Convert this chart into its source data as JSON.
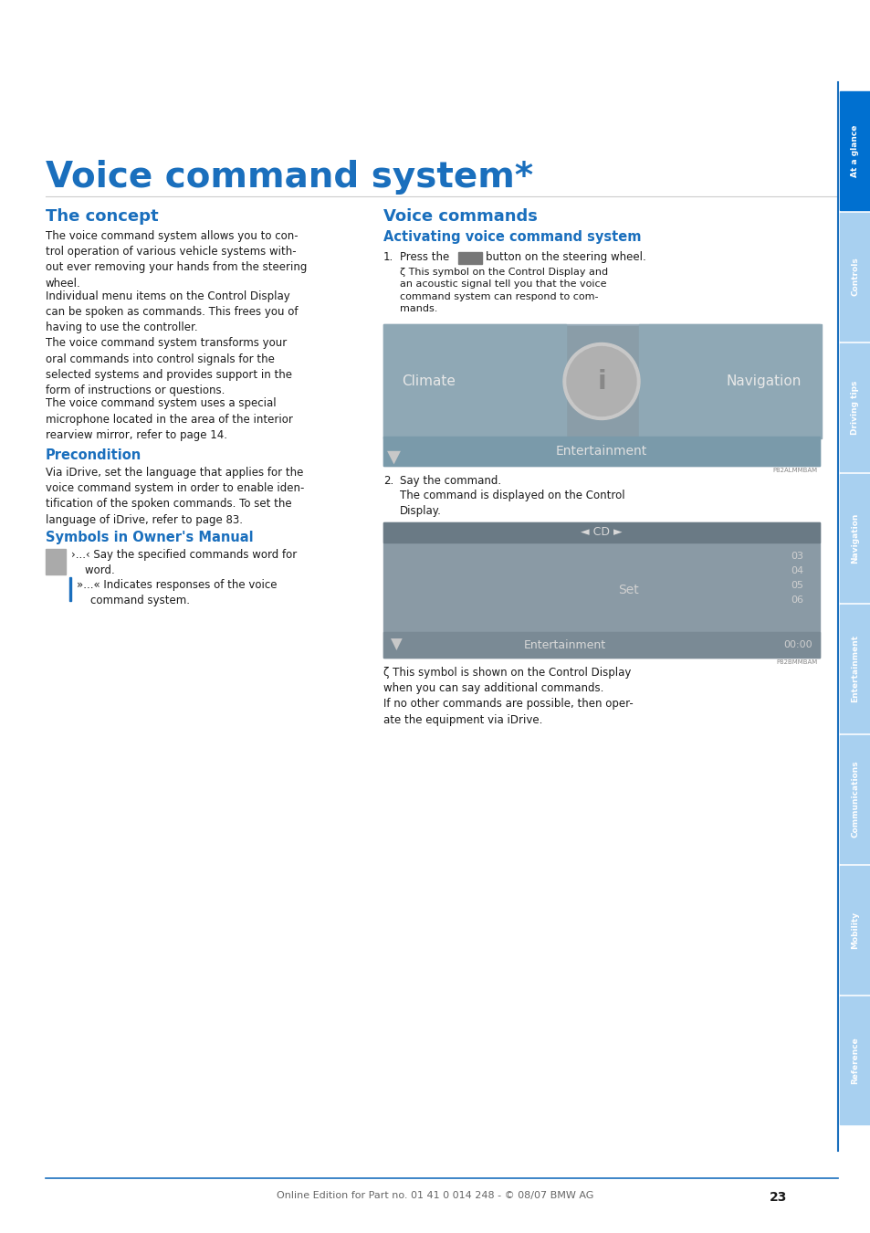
{
  "title": "Voice command system*",
  "title_color": "#1a6fbd",
  "bg_color": "#ffffff",
  "tab_active_color": "#0070d0",
  "tab_inactive_color": "#a8d0f0",
  "tab_labels": [
    "At a glance",
    "Controls",
    "Driving tips",
    "Navigation",
    "Entertainment",
    "Communications",
    "Mobility",
    "Reference"
  ],
  "left_col_header": "The concept",
  "left_col_header_color": "#1a6fbd",
  "para1": "The voice command system allows you to con-\ntrol operation of various vehicle systems with-\nout ever removing your hands from the steering\nwheel.",
  "para2": "Individual menu items on the Control Display\ncan be spoken as commands. This frees you of\nhaving to use the controller.",
  "para3": "The voice command system transforms your\noral commands into control signals for the\nselected systems and provides support in the\nform of instructions or questions.",
  "para4": "The voice command system uses a special\nmicrophone located in the area of the interior\nrearview mirror, refer to page 14.",
  "precondition_header": "Precondition",
  "precondition_color": "#1a6fbd",
  "precondition_text": "Via iDrive, set the language that applies for the\nvoice command system in order to enable iden-\ntification of the spoken commands. To set the\nlanguage of iDrive, refer to page 83.",
  "symbols_header": "Symbols in Owner's Manual",
  "symbols_color": "#1a6fbd",
  "sym1": "›...‹ Say the specified commands word for\n    word.",
  "sym2": "»...« Indicates responses of the voice\n    command system.",
  "right_col_header": "Voice commands",
  "right_col_header_color": "#1a6fbd",
  "activating_header": "Activating voice command system",
  "activating_color": "#1a6fbd",
  "step1_label": "1.",
  "step1_text": "Press the       button on the steering wheel.",
  "step1_note": "ζ This symbol on the Control Display and\nan acoustic signal tell you that the voice\ncommand system can respond to com-\nmands.",
  "step2_label": "2.",
  "step2_text": "Say the command.",
  "step2_note": "The command is displayed on the Control\nDisplay.",
  "bottom_note": "ζ This symbol is shown on the Control Display\nwhen you can say additional commands.\nIf no other commands are possible, then oper-\nate the equipment via iDrive.",
  "footer_text": "Online Edition for Part no. 01 41 0 014 248 - © 08/07 BMW AG",
  "page_number": "23",
  "ref14_color": "#1a6fbd",
  "ref83_color": "#1a6fbd"
}
